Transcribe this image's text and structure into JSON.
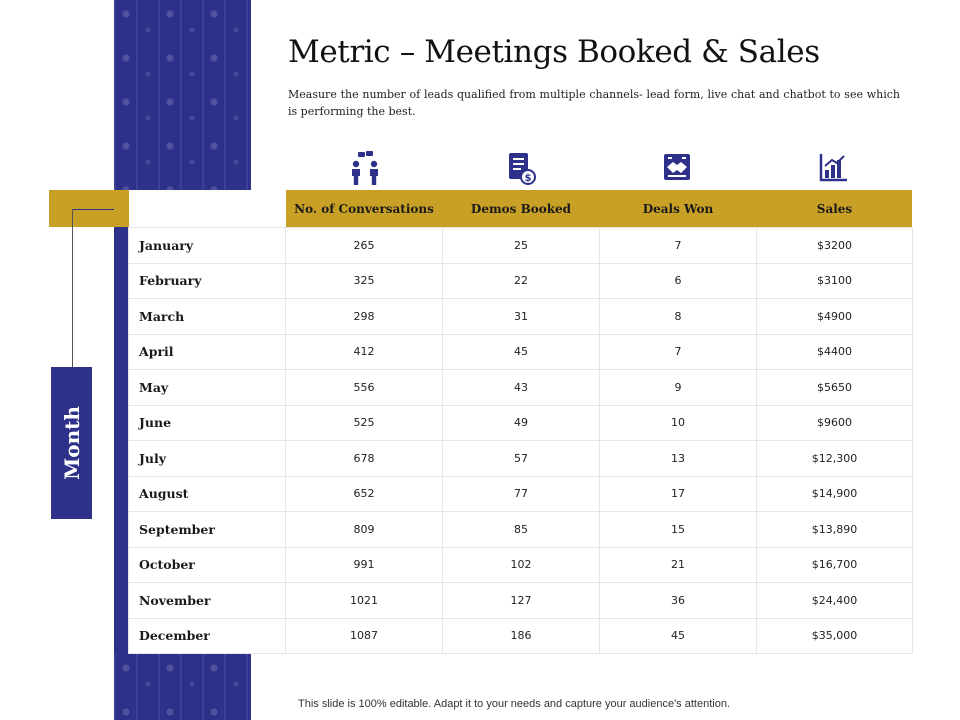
{
  "slide": {
    "title": "Metric – Meetings Booked & Sales",
    "subtitle": "Measure the number of leads qualified from multiple channels- lead form, live chat and chatbot to see which is performing  the best.",
    "side_label": "Month",
    "footer": "This slide is 100% editable. Adapt it to your needs and capture your audience's attention."
  },
  "colors": {
    "accent_blue": "#2e318a",
    "accent_gold": "#c9a026"
  },
  "icons": [
    "people-chat-icon",
    "invoice-dollar-icon",
    "handshake-icon",
    "bar-chart-icon"
  ],
  "table": {
    "headers": [
      "",
      "No. of Conversations",
      "Demos Booked",
      "Deals Won",
      "Sales"
    ],
    "rows": [
      [
        "January",
        "265",
        "25",
        "7",
        "$3200"
      ],
      [
        "February",
        "325",
        "22",
        "6",
        "$3100"
      ],
      [
        "March",
        "298",
        "31",
        "8",
        "$4900"
      ],
      [
        "April",
        "412",
        "45",
        "7",
        "$4400"
      ],
      [
        "May",
        "556",
        "43",
        "9",
        "$5650"
      ],
      [
        "June",
        "525",
        "49",
        "10",
        "$9600"
      ],
      [
        "July",
        "678",
        "57",
        "13",
        "$12,300"
      ],
      [
        "August",
        "652",
        "77",
        "17",
        "$14,900"
      ],
      [
        "September",
        "809",
        "85",
        "15",
        "$13,890"
      ],
      [
        "October",
        "991",
        "102",
        "21",
        "$16,700"
      ],
      [
        "November",
        "1021",
        "127",
        "36",
        "$24,400"
      ],
      [
        "December",
        "1087",
        "186",
        "45",
        "$35,000"
      ]
    ]
  }
}
